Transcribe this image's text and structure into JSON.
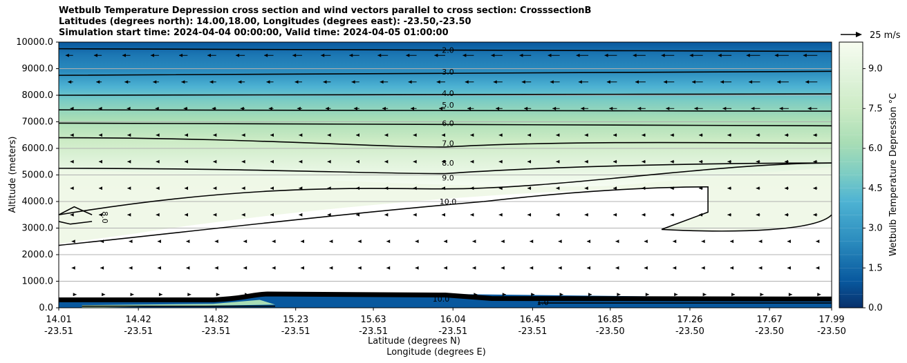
{
  "header": {
    "title_line1": "Wetbulb Temperature Depression cross section and wind vectors parallel to cross section: CrosssectionB",
    "title_line2": "Latitudes (degrees north): 14.00,18.00, Longitudes (degrees east): -23.50,-23.50",
    "title_line3": "Simulation start time: 2024-04-04 00:00:00, Valid time: 2024-04-05 01:00:00"
  },
  "quiver_key": {
    "label": "25 m/s"
  },
  "colors": {
    "ramp": [
      "#08306b",
      "#08589e",
      "#2b8cbe",
      "#4eb3d3",
      "#7bccc4",
      "#a8ddb5",
      "#ccebc5",
      "#e0f3db",
      "#f7fcf0"
    ],
    "contour": "#000000",
    "grid": "#b0b0b0"
  },
  "chart_data": {
    "type": "contour",
    "title": "Wetbulb Temperature Depression cross section and wind vectors parallel to cross section: CrosssectionB",
    "xlabel_line1": "Latitude (degrees N)",
    "xlabel_line2": "Longitude (degrees E)",
    "ylabel": "Altitude (meters)",
    "colorbar_label": "Wetbulb Temperature Depression °C",
    "ylim": [
      0,
      10000
    ],
    "xlim": [
      14.01,
      17.99
    ],
    "clim": [
      0,
      10
    ],
    "y_ticks": [
      "0.0",
      "1000.0",
      "2000.0",
      "3000.0",
      "4000.0",
      "5000.0",
      "6000.0",
      "7000.0",
      "8000.0",
      "9000.0",
      "10000.0"
    ],
    "x_ticks": [
      {
        "lat": "14.01",
        "lon": "-23.51"
      },
      {
        "lat": "14.42",
        "lon": "-23.51"
      },
      {
        "lat": "14.82",
        "lon": "-23.51"
      },
      {
        "lat": "15.23",
        "lon": "-23.51"
      },
      {
        "lat": "15.63",
        "lon": "-23.51"
      },
      {
        "lat": "16.04",
        "lon": "-23.51"
      },
      {
        "lat": "16.45",
        "lon": "-23.51"
      },
      {
        "lat": "16.85",
        "lon": "-23.50"
      },
      {
        "lat": "17.26",
        "lon": "-23.50"
      },
      {
        "lat": "17.67",
        "lon": "-23.50"
      },
      {
        "lat": "17.99",
        "lon": "-23.50"
      }
    ],
    "colorbar_ticks": [
      "0.0",
      "1.5",
      "3.0",
      "4.5",
      "6.0",
      "7.5",
      "9.0"
    ],
    "contour_labels": [
      "2.0",
      "3.0",
      "4.0",
      "5.0",
      "6.0",
      "7.0",
      "8.0",
      "9.0",
      "10.0"
    ],
    "side_label": "8.0",
    "grid": true,
    "contour_levels": [
      {
        "level": 2.0,
        "left_alt": 9750,
        "right_alt": 9650
      },
      {
        "level": 3.0,
        "left_alt": 8750,
        "right_alt": 8900
      },
      {
        "level": 4.0,
        "left_alt": 8000,
        "right_alt": 8050
      },
      {
        "level": 5.0,
        "left_alt": 7450,
        "right_alt": 7400
      },
      {
        "level": 6.0,
        "left_alt": 6950,
        "right_alt": 6850
      },
      {
        "level": 7.0,
        "left_alt": 6400,
        "right_alt": 6200
      },
      {
        "level": 8.0,
        "left_alt": 5250,
        "right_alt": 5450
      },
      {
        "level": 9.0,
        "left_alt": 3500,
        "right_alt": 5450
      }
    ],
    "surface_labels": [
      "1.0",
      "10.0"
    ]
  }
}
